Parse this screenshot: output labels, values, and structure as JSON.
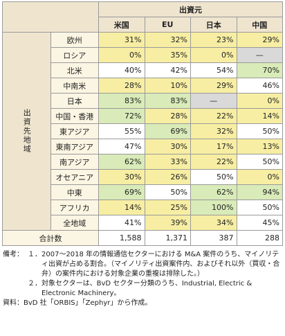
{
  "table": {
    "header": {
      "group": "出資元",
      "side": "出資先地域",
      "columns": [
        "米国",
        "EU",
        "日本",
        "中国"
      ]
    },
    "rows": [
      {
        "label": "欧州",
        "cells": [
          "31%",
          "32%",
          "23%",
          "29%"
        ],
        "colors": [
          "#f7eea3",
          "#f7eea3",
          "#f7eea3",
          "#f7eea3"
        ]
      },
      {
        "label": "ロシア",
        "cells": [
          "0%",
          "35%",
          "0%",
          "—"
        ],
        "colors": [
          "#f7eea3",
          "#f7eea3",
          "#f7eea3",
          "#d9d9d9"
        ]
      },
      {
        "label": "北米",
        "cells": [
          "40%",
          "42%",
          "54%",
          "70%"
        ],
        "colors": [
          "#ffffff",
          "#ffffff",
          "#ffffff",
          "#d9ebb8"
        ]
      },
      {
        "label": "中南米",
        "cells": [
          "28%",
          "10%",
          "29%",
          "46%"
        ],
        "colors": [
          "#f7eea3",
          "#f7eea3",
          "#f7eea3",
          "#ffffff"
        ]
      },
      {
        "label": "日本",
        "cells": [
          "83%",
          "83%",
          "—",
          "0%"
        ],
        "colors": [
          "#d9ebb8",
          "#d9ebb8",
          "#d9d9d9",
          "#f7eea3"
        ]
      },
      {
        "label": "中国・香港",
        "cells": [
          "72%",
          "28%",
          "22%",
          "14%"
        ],
        "colors": [
          "#d9ebb8",
          "#f7eea3",
          "#f7eea3",
          "#f7eea3"
        ]
      },
      {
        "label": "東アジア",
        "cells": [
          "55%",
          "69%",
          "32%",
          "50%"
        ],
        "colors": [
          "#ffffff",
          "#d9ebb8",
          "#f7eea3",
          "#ffffff"
        ]
      },
      {
        "label": "東南アジア",
        "cells": [
          "47%",
          "30%",
          "17%",
          "13%"
        ],
        "colors": [
          "#ffffff",
          "#f7eea3",
          "#f7eea3",
          "#f7eea3"
        ]
      },
      {
        "label": "南アジア",
        "cells": [
          "62%",
          "33%",
          "22%",
          "50%"
        ],
        "colors": [
          "#d9ebb8",
          "#f7eea3",
          "#f7eea3",
          "#ffffff"
        ]
      },
      {
        "label": "オセアニア",
        "cells": [
          "30%",
          "26%",
          "50%",
          "0%"
        ],
        "colors": [
          "#f7eea3",
          "#f7eea3",
          "#ffffff",
          "#f7eea3"
        ]
      },
      {
        "label": "中東",
        "cells": [
          "69%",
          "50%",
          "62%",
          "94%"
        ],
        "colors": [
          "#d9ebb8",
          "#ffffff",
          "#d9ebb8",
          "#d9ebb8"
        ]
      },
      {
        "label": "アフリカ",
        "cells": [
          "14%",
          "25%",
          "100%",
          "50%"
        ],
        "colors": [
          "#f7eea3",
          "#f7eea3",
          "#d9ebb8",
          "#ffffff"
        ]
      },
      {
        "label": "全地域",
        "cells": [
          "41%",
          "39%",
          "34%",
          "45%"
        ],
        "colors": [
          "#ffffff",
          "#f7eea3",
          "#f7eea3",
          "#ffffff"
        ]
      }
    ],
    "total": {
      "label": "合計数",
      "cells": [
        "1,588",
        "1,371",
        "387",
        "288"
      ]
    }
  },
  "notes": {
    "label": "備考：",
    "items": [
      {
        "number": "１．",
        "text": "2007〜2018 年の情報通信セクターにおける M&A 案件のうち、マイノリティ出資が占める割合。（マイノリティ出資案件内、およびそれ以外（買収・合弁）の案件内における対象企業の重複は排除した。）"
      },
      {
        "number": "２．",
        "text": "対象セクターは、BvD セクター分類のうち、Industrial, Electric & Electronic Machinery。"
      }
    ],
    "source": "資料：BvD 社「ORBIS」「Zephyr」から作成。"
  }
}
